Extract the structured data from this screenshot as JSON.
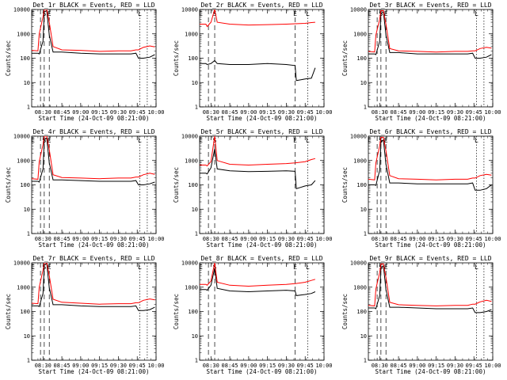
{
  "chart_data": {
    "type": "line",
    "yscale": "log",
    "ylim": [
      1,
      10000
    ],
    "xlim": [
      "08:21:00",
      "10:00:00"
    ],
    "xlabel": "Start Time (24-Oct-09 08:21:00)",
    "ylabel": "Counts/sec",
    "xticks": [
      "08:30",
      "08:45",
      "09:00",
      "09:15",
      "09:30",
      "09:45",
      "10:00"
    ],
    "yticks": [
      "1",
      "10",
      "100",
      "1000",
      "10000"
    ],
    "colors": {
      "events": "#000000",
      "lld": "#ff0000"
    },
    "panels": [
      {
        "title": "Det_1r BLACK = Events, RED = LLD",
        "markers": [
          "E",
          "S",
          "E",
          "L"
        ],
        "marker_times": [
          "08:22",
          "08:31",
          "08:35",
          "09:47"
        ],
        "vlines": [
          "08:28",
          "08:31",
          "08:35",
          "09:47",
          "09:53"
        ],
        "series": [
          {
            "name": "Events",
            "x": [
              "08:21",
              "08:26",
              "08:27",
              "08:30",
              "08:31",
              "08:33",
              "08:35",
              "08:38",
              "08:45",
              "09:00",
              "09:15",
              "09:30",
              "09:40",
              "09:44",
              "09:46",
              "09:50",
              "09:55",
              "09:59"
            ],
            "y": [
              160,
              160,
              150,
              500,
              8000,
              9000,
              900,
              180,
              180,
              160,
              150,
              150,
              150,
              160,
              100,
              100,
              110,
              140
            ]
          },
          {
            "name": "LLD",
            "x": [
              "08:21",
              "08:26",
              "08:27",
              "08:30",
              "08:31",
              "08:33",
              "08:35",
              "08:38",
              "08:45",
              "09:00",
              "09:15",
              "09:30",
              "09:40",
              "09:44",
              "09:46",
              "09:50",
              "09:55",
              "09:59"
            ],
            "y": [
              210,
              200,
              1000,
              5000,
              10000,
              10000,
              3000,
              300,
              220,
              210,
              190,
              200,
              200,
              220,
              220,
              280,
              320,
              290
            ]
          }
        ]
      },
      {
        "title": "Det_2r BLACK = Events, RED = LLD",
        "markers": [
          "E",
          "S",
          "E",
          "L"
        ],
        "marker_times": [
          "08:22",
          "08:33",
          "09:37",
          "09:47"
        ],
        "vlines": [
          "08:28",
          "08:33",
          "09:37",
          "09:47"
        ],
        "series": [
          {
            "name": "Events",
            "x": [
              "08:21",
              "08:26",
              "08:27",
              "08:30",
              "08:33",
              "08:35",
              "08:45",
              "09:00",
              "09:15",
              "09:30",
              "09:37",
              "09:38",
              "09:45",
              "09:50",
              "09:53"
            ],
            "y": [
              60,
              60,
              55,
              60,
              80,
              60,
              55,
              55,
              60,
              55,
              50,
              12,
              14,
              15,
              40
            ]
          },
          {
            "name": "LLD",
            "x": [
              "08:21",
              "08:26",
              "08:27",
              "08:30",
              "08:33",
              "08:35",
              "08:45",
              "09:00",
              "09:15",
              "09:30",
              "09:37",
              "09:45",
              "09:50",
              "09:53"
            ],
            "y": [
              2500,
              2500,
              2000,
              3000,
              10000,
              3000,
              2500,
              2300,
              2400,
              2500,
              2600,
              2700,
              2900,
              3000
            ]
          }
        ]
      },
      {
        "title": "Det_3r BLACK = Events, RED = LLD",
        "markers": [
          "E",
          "S",
          "E",
          "L"
        ],
        "marker_times": [
          "08:22",
          "08:31",
          "08:35",
          "09:47"
        ],
        "vlines": [
          "08:28",
          "08:31",
          "08:35",
          "09:47",
          "09:53"
        ],
        "series": [
          {
            "name": "Events",
            "x": [
              "08:21",
              "08:26",
              "08:27",
              "08:30",
              "08:31",
              "08:33",
              "08:35",
              "08:38",
              "08:45",
              "09:00",
              "09:15",
              "09:30",
              "09:40",
              "09:44",
              "09:46",
              "09:50",
              "09:55",
              "09:59"
            ],
            "y": [
              150,
              150,
              140,
              500,
              7000,
              8000,
              900,
              170,
              170,
              150,
              150,
              150,
              150,
              160,
              100,
              100,
              110,
              140
            ]
          },
          {
            "name": "LLD",
            "x": [
              "08:21",
              "08:26",
              "08:27",
              "08:30",
              "08:31",
              "08:33",
              "08:35",
              "08:38",
              "08:45",
              "09:00",
              "09:15",
              "09:30",
              "09:40",
              "09:44",
              "09:46",
              "09:50",
              "09:55",
              "09:59"
            ],
            "y": [
              190,
              180,
              900,
              4000,
              9000,
              9000,
              2500,
              250,
              200,
              190,
              180,
              190,
              190,
              200,
              200,
              250,
              280,
              260
            ]
          }
        ]
      },
      {
        "title": "Det_4r BLACK = Events, RED = LLD",
        "markers": [
          "E",
          "S",
          "E",
          "L"
        ],
        "marker_times": [
          "08:22",
          "08:31",
          "08:35",
          "09:47"
        ],
        "vlines": [
          "08:28",
          "08:31",
          "08:35",
          "09:47",
          "09:53"
        ],
        "series": [
          {
            "name": "Events",
            "x": [
              "08:21",
              "08:26",
              "08:27",
              "08:30",
              "08:31",
              "08:33",
              "08:35",
              "08:38",
              "08:45",
              "09:00",
              "09:15",
              "09:30",
              "09:40",
              "09:44",
              "09:46",
              "09:50",
              "09:55",
              "09:59"
            ],
            "y": [
              140,
              140,
              130,
              450,
              7000,
              8500,
              800,
              160,
              160,
              150,
              140,
              140,
              140,
              150,
              100,
              100,
              110,
              130
            ]
          },
          {
            "name": "LLD",
            "x": [
              "08:21",
              "08:26",
              "08:27",
              "08:30",
              "08:31",
              "08:33",
              "08:35",
              "08:38",
              "08:45",
              "09:00",
              "09:15",
              "09:30",
              "09:40",
              "09:44",
              "09:46",
              "09:50",
              "09:55",
              "09:59"
            ],
            "y": [
              180,
              170,
              900,
              4500,
              10000,
              10000,
              2800,
              260,
              200,
              190,
              180,
              190,
              190,
              210,
              210,
              260,
              300,
              270
            ]
          }
        ]
      },
      {
        "title": "Det_5r BLACK = Events, RED = LLD",
        "markers": [
          "E",
          "S",
          "E",
          "L"
        ],
        "marker_times": [
          "08:22",
          "08:33",
          "09:37",
          "09:47"
        ],
        "vlines": [
          "08:28",
          "08:33",
          "09:37",
          "09:47"
        ],
        "series": [
          {
            "name": "Events",
            "x": [
              "08:21",
              "08:26",
              "08:27",
              "08:30",
              "08:33",
              "08:35",
              "08:45",
              "09:00",
              "09:15",
              "09:30",
              "09:37",
              "09:38",
              "09:45",
              "09:50",
              "09:53"
            ],
            "y": [
              300,
              300,
              280,
              500,
              3000,
              450,
              380,
              350,
              360,
              380,
              360,
              70,
              90,
              100,
              150
            ]
          },
          {
            "name": "LLD",
            "x": [
              "08:21",
              "08:26",
              "08:27",
              "08:30",
              "08:33",
              "08:35",
              "08:45",
              "09:00",
              "09:15",
              "09:30",
              "09:37",
              "09:45",
              "09:50",
              "09:53"
            ],
            "y": [
              650,
              650,
              600,
              900,
              10000,
              1000,
              700,
              650,
              700,
              750,
              800,
              900,
              1100,
              1200
            ]
          }
        ]
      },
      {
        "title": "Det_6r BLACK = Events, RED = LLD",
        "markers": [
          "E",
          "S",
          "E",
          "L"
        ],
        "marker_times": [
          "08:22",
          "08:31",
          "08:35",
          "09:47"
        ],
        "vlines": [
          "08:28",
          "08:31",
          "08:35",
          "09:47",
          "09:53"
        ],
        "series": [
          {
            "name": "Events",
            "x": [
              "08:21",
              "08:26",
              "08:27",
              "08:30",
              "08:31",
              "08:33",
              "08:35",
              "08:38",
              "08:45",
              "09:00",
              "09:15",
              "09:30",
              "09:40",
              "09:44",
              "09:46",
              "09:50",
              "09:55",
              "09:59"
            ],
            "y": [
              100,
              100,
              95,
              400,
              6000,
              7000,
              700,
              120,
              120,
              110,
              110,
              110,
              110,
              120,
              60,
              60,
              70,
              100
            ]
          },
          {
            "name": "LLD",
            "x": [
              "08:21",
              "08:26",
              "08:27",
              "08:30",
              "08:31",
              "08:33",
              "08:35",
              "08:38",
              "08:45",
              "09:00",
              "09:15",
              "09:30",
              "09:40",
              "09:44",
              "09:46",
              "09:50",
              "09:55",
              "09:59"
            ],
            "y": [
              170,
              160,
              800,
              4000,
              9000,
              9000,
              2500,
              240,
              180,
              170,
              160,
              170,
              170,
              190,
              190,
              240,
              270,
              250
            ]
          }
        ]
      },
      {
        "title": "Det_7r BLACK = Events, RED = LLD",
        "markers": [
          "E",
          "S",
          "E",
          "L"
        ],
        "marker_times": [
          "08:22",
          "08:31",
          "08:35",
          "09:47"
        ],
        "vlines": [
          "08:28",
          "08:31",
          "08:35",
          "09:47",
          "09:53"
        ],
        "series": [
          {
            "name": "Events",
            "x": [
              "08:21",
              "08:26",
              "08:27",
              "08:30",
              "08:31",
              "08:33",
              "08:35",
              "08:38",
              "08:45",
              "09:00",
              "09:15",
              "09:30",
              "09:40",
              "09:44",
              "09:46",
              "09:50",
              "09:55",
              "09:59"
            ],
            "y": [
              170,
              170,
              160,
              550,
              8000,
              9500,
              950,
              190,
              190,
              170,
              160,
              160,
              160,
              170,
              110,
              110,
              120,
              150
            ]
          },
          {
            "name": "LLD",
            "x": [
              "08:21",
              "08:26",
              "08:27",
              "08:30",
              "08:31",
              "08:33",
              "08:35",
              "08:38",
              "08:45",
              "09:00",
              "09:15",
              "09:30",
              "09:40",
              "09:44",
              "09:46",
              "09:50",
              "09:55",
              "09:59"
            ],
            "y": [
              220,
              210,
              1000,
              5000,
              10000,
              10000,
              3000,
              320,
              240,
              220,
              200,
              210,
              210,
              230,
              230,
              290,
              330,
              300
            ]
          }
        ]
      },
      {
        "title": "Det_8r BLACK = Events, RED = LLD",
        "markers": [
          "E",
          "S",
          "E",
          "L"
        ],
        "marker_times": [
          "08:22",
          "08:33",
          "09:37",
          "09:47"
        ],
        "vlines": [
          "08:28",
          "08:33",
          "09:37",
          "09:47"
        ],
        "series": [
          {
            "name": "Events",
            "x": [
              "08:21",
              "08:26",
              "08:27",
              "08:30",
              "08:33",
              "08:35",
              "08:45",
              "09:00",
              "09:15",
              "09:30",
              "09:37",
              "09:38",
              "09:45",
              "09:50",
              "09:53"
            ],
            "y": [
              800,
              800,
              750,
              1200,
              6000,
              900,
              700,
              650,
              700,
              750,
              700,
              450,
              500,
              550,
              650
            ]
          },
          {
            "name": "LLD",
            "x": [
              "08:21",
              "08:26",
              "08:27",
              "08:30",
              "08:33",
              "08:35",
              "08:45",
              "09:00",
              "09:15",
              "09:30",
              "09:37",
              "09:45",
              "09:50",
              "09:53"
            ],
            "y": [
              1300,
              1300,
              1200,
              1800,
              10000,
              1600,
              1200,
              1100,
              1200,
              1300,
              1400,
              1600,
              1900,
              2100
            ]
          }
        ]
      },
      {
        "title": "Det_9r BLACK = Events, RED = LLD",
        "markers": [
          "E",
          "S",
          "E",
          "L"
        ],
        "marker_times": [
          "08:22",
          "08:31",
          "08:35",
          "09:47"
        ],
        "vlines": [
          "08:28",
          "08:31",
          "08:35",
          "09:47",
          "09:53"
        ],
        "series": [
          {
            "name": "Events",
            "x": [
              "08:21",
              "08:26",
              "08:27",
              "08:30",
              "08:31",
              "08:33",
              "08:35",
              "08:38",
              "08:45",
              "09:00",
              "09:15",
              "09:30",
              "09:40",
              "09:44",
              "09:46",
              "09:50",
              "09:55",
              "09:59"
            ],
            "y": [
              140,
              140,
              130,
              450,
              6500,
              7500,
              800,
              150,
              150,
              140,
              130,
              130,
              130,
              140,
              90,
              90,
              100,
              120
            ]
          },
          {
            "name": "LLD",
            "x": [
              "08:21",
              "08:26",
              "08:27",
              "08:30",
              "08:31",
              "08:33",
              "08:35",
              "08:38",
              "08:45",
              "09:00",
              "09:15",
              "09:30",
              "09:40",
              "09:44",
              "09:46",
              "09:50",
              "09:55",
              "09:59"
            ],
            "y": [
              180,
              170,
              850,
              4000,
              9000,
              9000,
              2500,
              240,
              190,
              180,
              170,
              180,
              180,
              200,
              200,
              250,
              290,
              260
            ]
          }
        ]
      }
    ]
  }
}
